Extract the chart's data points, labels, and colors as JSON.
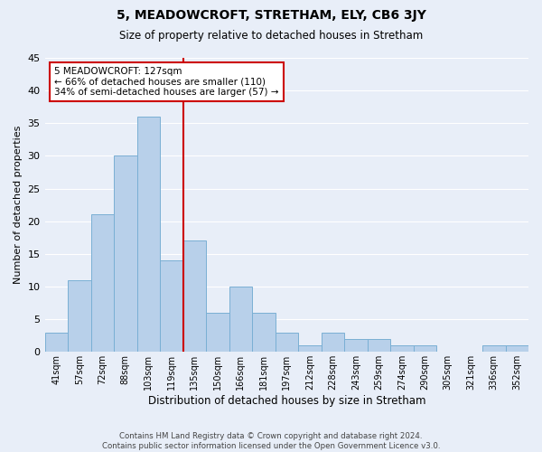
{
  "title1": "5, MEADOWCROFT, STRETHAM, ELY, CB6 3JY",
  "title2": "Size of property relative to detached houses in Stretham",
  "xlabel": "Distribution of detached houses by size in Stretham",
  "ylabel": "Number of detached properties",
  "categories": [
    "41sqm",
    "57sqm",
    "72sqm",
    "88sqm",
    "103sqm",
    "119sqm",
    "135sqm",
    "150sqm",
    "166sqm",
    "181sqm",
    "197sqm",
    "212sqm",
    "228sqm",
    "243sqm",
    "259sqm",
    "274sqm",
    "290sqm",
    "305sqm",
    "321sqm",
    "336sqm",
    "352sqm"
  ],
  "values": [
    3,
    11,
    21,
    30,
    36,
    14,
    17,
    6,
    10,
    6,
    3,
    1,
    3,
    2,
    2,
    1,
    1,
    0,
    0,
    1,
    1
  ],
  "bar_color": "#b8d0ea",
  "bar_edge_color": "#7aafd4",
  "ylim": [
    0,
    45
  ],
  "yticks": [
    0,
    5,
    10,
    15,
    20,
    25,
    30,
    35,
    40,
    45
  ],
  "property_size": 127,
  "property_label": "5 MEADOWCROFT: 127sqm",
  "annotation_line1": "← 66% of detached houses are smaller (110)",
  "annotation_line2": "34% of semi-detached houses are larger (57) →",
  "vline_color": "#cc0000",
  "annotation_box_edge": "#cc0000",
  "footer1": "Contains HM Land Registry data © Crown copyright and database right 2024.",
  "footer2": "Contains public sector information licensed under the Open Government Licence v3.0.",
  "bg_color": "#e8eef8",
  "grid_color": "#ffffff",
  "bin_width": 16
}
